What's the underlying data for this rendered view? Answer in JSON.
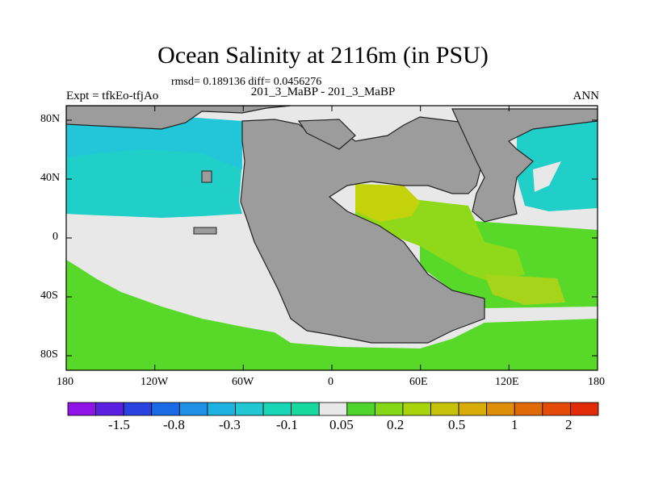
{
  "title": "Ocean Salinity at 2116m (in PSU)",
  "stats_line": "rmsd= 0.189136 diff= 0.0456276",
  "left_label": "Expt = tfkEo-tfjAo",
  "center_label": "201_3_MaBP - 201_3_MaBP",
  "right_label": "ANN",
  "lon_ticks": [
    "180",
    "120W",
    "60W",
    "0",
    "60E",
    "120E",
    "180"
  ],
  "lat_ticks": [
    "80N",
    "40N",
    "0",
    "40S",
    "80S"
  ],
  "colorbar": {
    "colors": [
      "#8f14e6",
      "#5a1fe0",
      "#2a43e0",
      "#1a6ae6",
      "#1e90e6",
      "#1eb2e0",
      "#1fc8d2",
      "#1ad6b8",
      "#17d9a0",
      "#e8e8e8",
      "#4ed42a",
      "#84d816",
      "#a8d40c",
      "#c6c10a",
      "#d9ad08",
      "#de8e07",
      "#e06a06",
      "#e44b06",
      "#e22a08"
    ],
    "labels": [
      "-1.5",
      "-0.8",
      "-0.3",
      "-0.1",
      "0.05",
      "0.2",
      "0.5",
      "1",
      "2"
    ]
  },
  "colors": {
    "land": "#9c9c9c",
    "near_zero": "#e8e8e8",
    "cyan": "#1fcfc8",
    "cyan_light": "#22c6d8",
    "green": "#58d92a",
    "lime": "#8fd81a",
    "yellow_green": "#c4d20c",
    "orange_red": "#e25208"
  }
}
